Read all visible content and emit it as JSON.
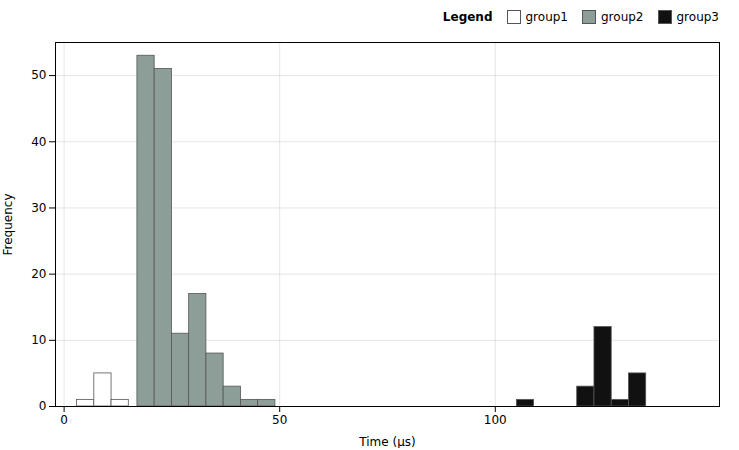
{
  "chart_data": {
    "type": "histogram",
    "xlabel": "Time (μs)",
    "ylabel": "Frequency",
    "xlim": [
      -2,
      152
    ],
    "ylim": [
      0,
      55
    ],
    "xticks": [
      0,
      50,
      100
    ],
    "yticks": [
      0,
      10,
      20,
      30,
      40,
      50
    ],
    "grid": true,
    "legend": "upper right",
    "legend_title": "Legend",
    "series": [
      {
        "name": "group1",
        "color": "#ffffff",
        "bins": [
          3,
          7,
          11,
          15
        ],
        "values": [
          1,
          5,
          1
        ]
      },
      {
        "name": "group2",
        "color": "#8c9e97",
        "bins": [
          17,
          21,
          25,
          29,
          33,
          37,
          41,
          45,
          49
        ],
        "values": [
          53,
          51,
          11,
          17,
          8,
          3,
          1,
          1
        ]
      },
      {
        "name": "group3",
        "color": "#111111",
        "bins": [
          105,
          109,
          119,
          123,
          127,
          131,
          135
        ],
        "values": [
          1,
          null,
          3,
          12,
          1,
          5
        ]
      }
    ]
  }
}
